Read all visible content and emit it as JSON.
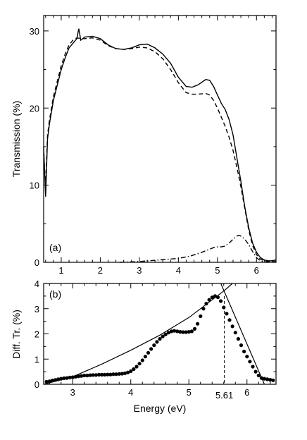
{
  "chart_data": [
    {
      "id": "a",
      "type": "line",
      "panel_label": "(a)",
      "xlabel": "",
      "ylabel": "Transmission (%)",
      "xlim": [
        0.55,
        6.5
      ],
      "ylim": [
        0,
        32
      ],
      "xticks": [
        1,
        2,
        3,
        4,
        5,
        6
      ],
      "yticks": [
        0,
        10,
        20,
        30
      ],
      "series": [
        {
          "style": "solid",
          "x": [
            0.55,
            0.6,
            0.65,
            0.7,
            0.75,
            0.8,
            0.9,
            1.0,
            1.1,
            1.2,
            1.3,
            1.4,
            1.45,
            1.5,
            1.6,
            1.8,
            2.0,
            2.2,
            2.4,
            2.6,
            2.8,
            3.0,
            3.2,
            3.4,
            3.6,
            3.8,
            4.0,
            4.2,
            4.35,
            4.5,
            4.7,
            4.8,
            4.9,
            5.0,
            5.1,
            5.2,
            5.3,
            5.4,
            5.5,
            5.6,
            5.7,
            5.8,
            5.9,
            6.0,
            6.1,
            6.2,
            6.3,
            6.4,
            6.5
          ],
          "y": [
            15,
            8.5,
            16,
            18,
            19.5,
            21,
            23,
            25,
            26.5,
            27.8,
            28.4,
            29,
            30.3,
            28.8,
            29.2,
            29.3,
            29.0,
            28.2,
            27.7,
            27.6,
            27.8,
            28.2,
            28.3,
            27.8,
            27.0,
            25.8,
            24.0,
            22.8,
            22.7,
            23.0,
            23.7,
            23.6,
            22.8,
            21.7,
            20.6,
            19.8,
            18.5,
            16.5,
            13.5,
            10.5,
            7.2,
            4.5,
            2.5,
            1.3,
            0.6,
            0.3,
            0.2,
            0.2,
            0.3
          ]
        },
        {
          "style": "dashed",
          "x": [
            0.55,
            0.6,
            0.65,
            0.7,
            0.75,
            0.8,
            0.9,
            1.0,
            1.1,
            1.2,
            1.3,
            1.4,
            1.5,
            1.6,
            1.8,
            2.0,
            2.2,
            2.4,
            2.6,
            2.8,
            3.0,
            3.2,
            3.4,
            3.6,
            3.8,
            4.0,
            4.2,
            4.35,
            4.5,
            4.7,
            4.8,
            4.9,
            5.0,
            5.1,
            5.2,
            5.3,
            5.4,
            5.5,
            5.6,
            5.7,
            5.8,
            5.9,
            6.0,
            6.1,
            6.2,
            6.3,
            6.4,
            6.5
          ],
          "y": [
            14,
            10,
            16.5,
            18.5,
            20,
            21.5,
            23.5,
            25.5,
            27,
            28.2,
            28.8,
            29.1,
            29.0,
            29.0,
            29.1,
            28.8,
            28.1,
            27.7,
            27.6,
            27.7,
            27.9,
            27.8,
            27.3,
            26.4,
            25.0,
            23.3,
            22.0,
            21.8,
            21.8,
            21.9,
            21.7,
            21.0,
            20.0,
            18.8,
            17.6,
            16.2,
            14.5,
            12.3,
            9.8,
            7.0,
            4.2,
            2.2,
            1.0,
            0.4,
            0.2,
            0.1,
            0.1,
            0.1
          ]
        },
        {
          "style": "dash-dot",
          "x": [
            2.5,
            3.0,
            3.5,
            4.0,
            4.3,
            4.6,
            4.8,
            4.9,
            5.0,
            5.1,
            5.2,
            5.3,
            5.4,
            5.5,
            5.55,
            5.6,
            5.7,
            5.8,
            5.9,
            6.0,
            6.1,
            6.2,
            6.3
          ],
          "y": [
            0,
            0.1,
            0.3,
            0.5,
            0.8,
            1.3,
            1.7,
            1.9,
            2.0,
            2.0,
            2.1,
            2.5,
            3.0,
            3.4,
            3.5,
            3.4,
            3.0,
            2.3,
            1.4,
            0.6,
            0.2,
            0.05,
            0
          ]
        }
      ]
    },
    {
      "id": "b",
      "type": "scatter",
      "panel_label": "(b)",
      "xlabel": "Energy (eV)",
      "ylabel": "Diff. Tr. (%)",
      "xlim": [
        2.5,
        6.5
      ],
      "ylim": [
        0,
        4
      ],
      "xticks": [
        3,
        4,
        5,
        6
      ],
      "yticks": [
        0,
        1,
        2,
        3,
        4
      ],
      "marker_label": "5.61",
      "marker_x": 5.61,
      "points_x": [
        2.55,
        2.6,
        2.65,
        2.7,
        2.75,
        2.8,
        2.85,
        2.9,
        2.95,
        3.0,
        3.05,
        3.1,
        3.15,
        3.2,
        3.25,
        3.3,
        3.35,
        3.4,
        3.45,
        3.5,
        3.55,
        3.6,
        3.65,
        3.7,
        3.75,
        3.8,
        3.85,
        3.9,
        3.95,
        4.0,
        4.05,
        4.1,
        4.15,
        4.2,
        4.25,
        4.3,
        4.35,
        4.4,
        4.45,
        4.5,
        4.55,
        4.6,
        4.65,
        4.7,
        4.75,
        4.8,
        4.85,
        4.9,
        4.95,
        5.0,
        5.05,
        5.1,
        5.15,
        5.2,
        5.25,
        5.3,
        5.35,
        5.4,
        5.45,
        5.5,
        5.55,
        5.6,
        5.65,
        5.7,
        5.75,
        5.8,
        5.85,
        5.9,
        5.95,
        6.0,
        6.05,
        6.1,
        6.15,
        6.2,
        6.25,
        6.3,
        6.35,
        6.4,
        6.45
      ],
      "points_y": [
        0.1,
        0.12,
        0.15,
        0.17,
        0.2,
        0.22,
        0.24,
        0.25,
        0.27,
        0.28,
        0.3,
        0.32,
        0.33,
        0.35,
        0.35,
        0.36,
        0.37,
        0.37,
        0.38,
        0.38,
        0.38,
        0.39,
        0.39,
        0.4,
        0.4,
        0.41,
        0.42,
        0.44,
        0.47,
        0.52,
        0.6,
        0.7,
        0.82,
        0.95,
        1.1,
        1.25,
        1.4,
        1.55,
        1.68,
        1.8,
        1.9,
        1.98,
        2.05,
        2.1,
        2.12,
        2.1,
        2.08,
        2.07,
        2.07,
        2.08,
        2.1,
        2.2,
        2.4,
        2.7,
        3.0,
        3.2,
        3.35,
        3.45,
        3.5,
        3.45,
        3.3,
        3.05,
        2.8,
        2.55,
        2.3,
        2.05,
        1.8,
        1.55,
        1.3,
        1.1,
        0.9,
        0.7,
        0.5,
        0.35,
        0.25,
        0.22,
        0.2,
        0.18,
        0.16
      ],
      "fit_curve_x": [
        2.5,
        3.0,
        3.5,
        4.0,
        4.5,
        5.0,
        5.2,
        5.4,
        5.6,
        5.75
      ],
      "fit_curve_y": [
        0.0,
        0.3,
        0.8,
        1.35,
        1.95,
        2.65,
        3.0,
        3.35,
        3.7,
        4.0
      ],
      "fit_line_x": [
        5.55,
        6.3
      ],
      "fit_line_y": [
        4.0,
        0.0
      ]
    }
  ]
}
